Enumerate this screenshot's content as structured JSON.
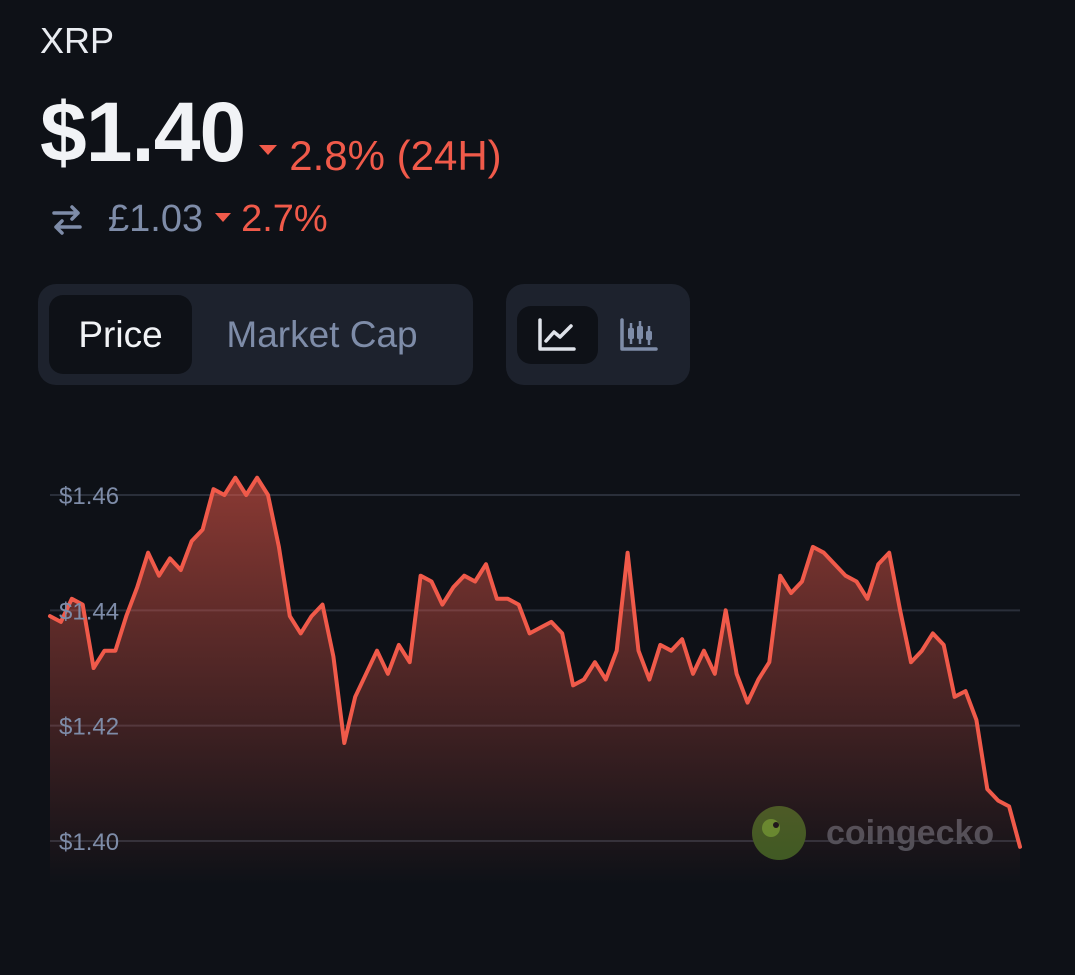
{
  "header": {
    "coin": "XRP",
    "price": "$1.40",
    "change_24h": "2.8% (24H)",
    "change_24h_direction": "down",
    "alt_price": "£1.03",
    "alt_change": "2.7%",
    "alt_change_direction": "down",
    "swap_icon": "swap-arrows-icon"
  },
  "tabs": {
    "metric": [
      {
        "label": "Price",
        "active": true
      },
      {
        "label": "Market Cap",
        "active": false
      }
    ],
    "chart_type": [
      {
        "icon": "line-chart-icon",
        "active": true
      },
      {
        "icon": "candlestick-chart-icon",
        "active": false
      }
    ]
  },
  "watermark": {
    "text": "coingecko",
    "icon": "gecko-logo-icon"
  },
  "colors": {
    "background": "#0e1117",
    "negative": "#f05a4a",
    "muted": "#7e8ca8",
    "panel": "#1d222d",
    "grid": "#2a2f3a"
  },
  "chart_data": {
    "type": "area",
    "title": "",
    "xlabel": "",
    "ylabel": "",
    "ylim": [
      1.395,
      1.465
    ],
    "yticks": [
      1.46,
      1.44,
      1.42,
      1.4
    ],
    "ytick_labels": [
      "$1.46",
      "$1.44",
      "$1.42",
      "$1.40"
    ],
    "grid": true,
    "series": [
      {
        "values": [
          1.439,
          1.438,
          1.442,
          1.441,
          1.43,
          1.433,
          1.433,
          1.439,
          1.444,
          1.45,
          1.446,
          1.449,
          1.447,
          1.452,
          1.454,
          1.461,
          1.46,
          1.463,
          1.46,
          1.463,
          1.46,
          1.451,
          1.439,
          1.436,
          1.439,
          1.441,
          1.432,
          1.417,
          1.425,
          1.429,
          1.433,
          1.429,
          1.434,
          1.431,
          1.446,
          1.445,
          1.441,
          1.444,
          1.446,
          1.445,
          1.448,
          1.442,
          1.442,
          1.441,
          1.436,
          1.437,
          1.438,
          1.436,
          1.427,
          1.428,
          1.431,
          1.428,
          1.433,
          1.45,
          1.433,
          1.428,
          1.434,
          1.433,
          1.435,
          1.429,
          1.433,
          1.429,
          1.44,
          1.429,
          1.424,
          1.428,
          1.431,
          1.446,
          1.443,
          1.445,
          1.451,
          1.45,
          1.448,
          1.446,
          1.445,
          1.442,
          1.448,
          1.45,
          1.44,
          1.431,
          1.433,
          1.436,
          1.434,
          1.425,
          1.426,
          1.421,
          1.409,
          1.407,
          1.406,
          1.399
        ]
      }
    ]
  }
}
